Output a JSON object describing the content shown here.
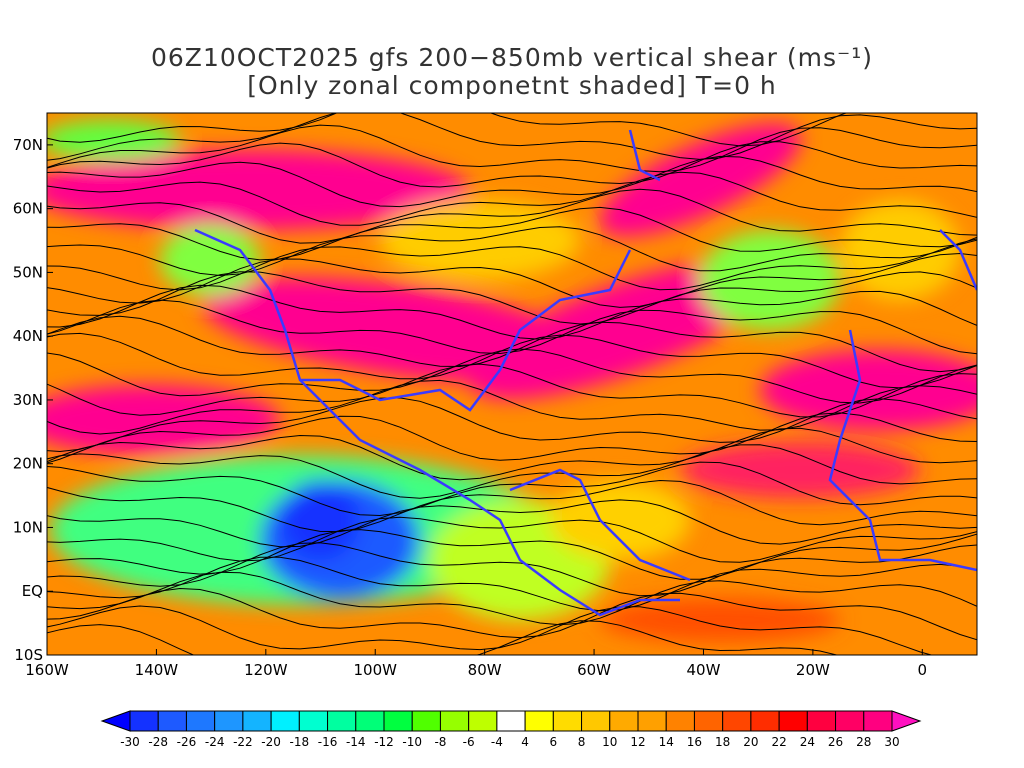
{
  "title": {
    "line1": "06Z10OCT2025 gfs 200−850mb vertical shear (ms⁻¹)",
    "line2": "[Only zonal componetnt shaded] T=0 h"
  },
  "map": {
    "lon_range": [
      -160,
      10
    ],
    "lat_range": [
      -10,
      75
    ],
    "lon_ticks": [
      {
        "v": -160,
        "label": "160W"
      },
      {
        "v": -140,
        "label": "140W"
      },
      {
        "v": -120,
        "label": "120W"
      },
      {
        "v": -100,
        "label": "100W"
      },
      {
        "v": -80,
        "label": "80W"
      },
      {
        "v": -60,
        "label": "60W"
      },
      {
        "v": -40,
        "label": "40W"
      },
      {
        "v": -20,
        "label": "20W"
      },
      {
        "v": 0,
        "label": "0"
      }
    ],
    "lat_ticks": [
      {
        "v": 70,
        "label": "70N"
      },
      {
        "v": 60,
        "label": "60N"
      },
      {
        "v": 50,
        "label": "50N"
      },
      {
        "v": 40,
        "label": "40N"
      },
      {
        "v": 30,
        "label": "30N"
      },
      {
        "v": 20,
        "label": "20N"
      },
      {
        "v": 10,
        "label": "10N"
      },
      {
        "v": 0,
        "label": "EQ"
      },
      {
        "v": -10,
        "label": "10S"
      }
    ]
  },
  "colorbar": {
    "labels": [
      "-30",
      "-28",
      "-26",
      "-24",
      "-22",
      "-20",
      "-18",
      "-16",
      "-14",
      "-12",
      "-10",
      "-8",
      "-6",
      "-4",
      "4",
      "6",
      "8",
      "10",
      "12",
      "14",
      "16",
      "18",
      "20",
      "22",
      "24",
      "26",
      "28",
      "30"
    ],
    "low_color": "#0000ff",
    "high_color": "#ff10c0",
    "colors": [
      "#1432ff",
      "#1e5aff",
      "#1e78ff",
      "#1e96ff",
      "#14b4ff",
      "#00f0ff",
      "#00ffd0",
      "#00ffa0",
      "#00ff78",
      "#00ff40",
      "#50ff00",
      "#96ff00",
      "#beff00",
      "#ffffff",
      "#ffff00",
      "#ffdc00",
      "#ffc800",
      "#ffaa00",
      "#ffa000",
      "#ff8200",
      "#ff6400",
      "#ff4600",
      "#ff2d00",
      "#ff0000",
      "#ff0040",
      "#ff0064",
      "#ff0080",
      "#ff0096"
    ]
  }
}
